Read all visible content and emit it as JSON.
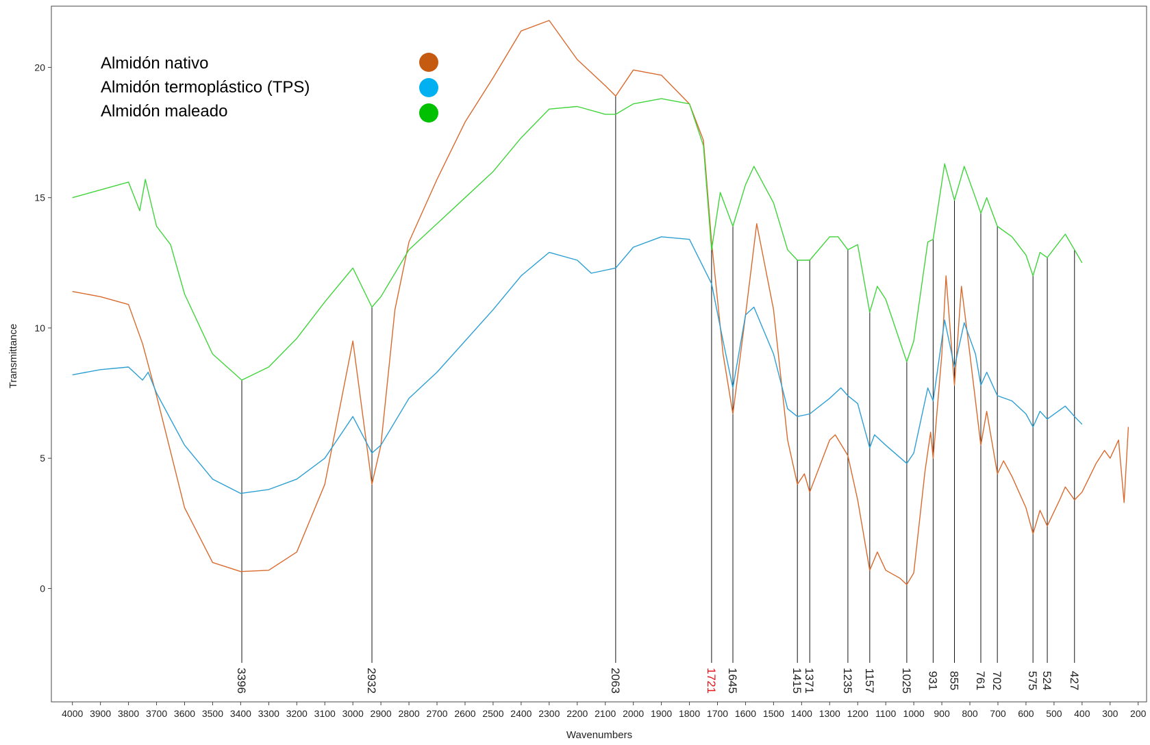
{
  "chart_data": {
    "type": "line",
    "x_label": "Wavenumbers",
    "y_label": "Transmittance",
    "xlim": [
      4075,
      170
    ],
    "ylim": [
      -4.35,
      22.35
    ],
    "xticks": [
      4000,
      3900,
      3800,
      3700,
      3600,
      3500,
      3400,
      3300,
      3200,
      3100,
      3000,
      2900,
      2800,
      2700,
      2600,
      2500,
      2400,
      2300,
      2200,
      2100,
      2000,
      1900,
      1800,
      1700,
      1600,
      1500,
      1400,
      1300,
      1200,
      1100,
      1000,
      900,
      800,
      700,
      600,
      500,
      400,
      300,
      200
    ],
    "yticks": [
      0,
      5,
      10,
      15,
      20
    ],
    "legend": "upper-left",
    "legend_colors": [
      "#c55a11",
      "#00b0f0",
      "#00c000"
    ],
    "series": [
      {
        "name": "Almidón nativo",
        "color": "#d9692d",
        "x": [
          4000,
          3900,
          3800,
          3750,
          3700,
          3600,
          3500,
          3400,
          3300,
          3200,
          3100,
          3000,
          2932,
          2900,
          2850,
          2800,
          2700,
          2600,
          2500,
          2400,
          2300,
          2200,
          2100,
          2063,
          2000,
          1900,
          1800,
          1750,
          1721,
          1680,
          1645,
          1600,
          1560,
          1500,
          1450,
          1415,
          1390,
          1371,
          1300,
          1280,
          1235,
          1200,
          1157,
          1130,
          1100,
          1050,
          1025,
          1000,
          960,
          940,
          931,
          900,
          885,
          855,
          830,
          800,
          761,
          740,
          702,
          680,
          650,
          600,
          575,
          550,
          524,
          480,
          460,
          427,
          400,
          350,
          320,
          300,
          270,
          250,
          235
        ],
        "values": [
          11.4,
          11.2,
          10.9,
          9.4,
          7.4,
          3.1,
          1.0,
          0.65,
          0.7,
          1.4,
          4.0,
          9.5,
          4.0,
          5.5,
          10.7,
          13.3,
          15.7,
          17.9,
          19.6,
          21.4,
          21.8,
          20.3,
          19.3,
          18.9,
          19.9,
          19.7,
          18.6,
          17.2,
          13.3,
          9.0,
          6.7,
          10.5,
          14.0,
          10.7,
          5.7,
          4.0,
          4.4,
          3.7,
          5.7,
          5.9,
          5.1,
          3.4,
          0.7,
          1.4,
          0.7,
          0.4,
          0.15,
          0.6,
          4.5,
          6.0,
          5.0,
          9.0,
          12.0,
          7.8,
          11.6,
          9.0,
          5.5,
          6.8,
          4.4,
          4.9,
          4.3,
          3.1,
          2.1,
          3.0,
          2.4,
          3.4,
          3.9,
          3.4,
          3.7,
          4.8,
          5.3,
          5.0,
          5.7,
          3.3,
          6.2
        ]
      },
      {
        "name": "Almidón termoplástico (TPS)",
        "color": "#2b9fd4",
        "x": [
          4000,
          3900,
          3800,
          3750,
          3730,
          3700,
          3600,
          3500,
          3400,
          3300,
          3200,
          3100,
          3000,
          2932,
          2900,
          2800,
          2700,
          2600,
          2500,
          2400,
          2300,
          2200,
          2150,
          2063,
          2000,
          1900,
          1800,
          1721,
          1680,
          1645,
          1600,
          1570,
          1500,
          1450,
          1415,
          1371,
          1300,
          1260,
          1235,
          1200,
          1157,
          1140,
          1100,
          1025,
          1000,
          950,
          931,
          890,
          855,
          820,
          780,
          761,
          740,
          702,
          650,
          600,
          575,
          550,
          524,
          460,
          427,
          400
        ],
        "values": [
          8.2,
          8.4,
          8.5,
          8.0,
          8.3,
          7.5,
          5.5,
          4.2,
          3.65,
          3.8,
          4.2,
          5.0,
          6.6,
          5.2,
          5.5,
          7.3,
          8.3,
          9.5,
          10.7,
          12.0,
          12.9,
          12.6,
          12.1,
          12.3,
          13.1,
          13.5,
          13.4,
          11.7,
          9.5,
          7.7,
          10.5,
          10.8,
          9.0,
          6.9,
          6.6,
          6.7,
          7.3,
          7.7,
          7.4,
          7.1,
          5.4,
          5.9,
          5.5,
          4.8,
          5.2,
          7.7,
          7.2,
          10.3,
          8.5,
          10.2,
          9.0,
          7.8,
          8.3,
          7.4,
          7.2,
          6.7,
          6.2,
          6.8,
          6.5,
          7.0,
          6.6,
          6.3
        ]
      },
      {
        "name": "Almidón maleado",
        "color": "#3fd43a",
        "x": [
          4000,
          3900,
          3800,
          3760,
          3740,
          3700,
          3650,
          3600,
          3500,
          3396,
          3300,
          3200,
          3100,
          3000,
          2932,
          2900,
          2800,
          2700,
          2600,
          2500,
          2400,
          2300,
          2200,
          2100,
          2063,
          2000,
          1900,
          1800,
          1750,
          1721,
          1690,
          1645,
          1600,
          1570,
          1500,
          1450,
          1415,
          1371,
          1300,
          1270,
          1235,
          1200,
          1157,
          1130,
          1100,
          1025,
          1000,
          950,
          931,
          890,
          855,
          820,
          780,
          761,
          740,
          702,
          650,
          600,
          575,
          550,
          524,
          460,
          427,
          400
        ],
        "values": [
          15.0,
          15.3,
          15.6,
          14.5,
          15.7,
          13.9,
          13.2,
          11.3,
          9.0,
          8.0,
          8.5,
          9.6,
          11.0,
          12.3,
          10.8,
          11.2,
          13.0,
          14.0,
          15.0,
          16.0,
          17.3,
          18.4,
          18.5,
          18.2,
          18.2,
          18.6,
          18.8,
          18.6,
          17.0,
          13.0,
          15.2,
          13.9,
          15.5,
          16.2,
          14.8,
          13.0,
          12.6,
          12.6,
          13.5,
          13.5,
          13.0,
          13.2,
          10.6,
          11.6,
          11.1,
          8.7,
          9.5,
          13.3,
          13.4,
          16.3,
          14.9,
          16.2,
          15.0,
          14.4,
          15.0,
          13.9,
          13.5,
          12.8,
          12.0,
          12.9,
          12.7,
          13.6,
          13.0,
          12.5
        ]
      }
    ],
    "peaks": [
      3396,
      2932,
      2063,
      1721,
      1645,
      1415,
      1371,
      1235,
      1157,
      1025,
      931,
      855,
      761,
      702,
      575,
      524,
      427
    ],
    "peak_colors": [
      "#222",
      "#222",
      "#222",
      "#e8141c",
      "#222",
      "#222",
      "#222",
      "#222",
      "#222",
      "#222",
      "#222",
      "#222",
      "#222",
      "#222",
      "#222",
      "#222",
      "#222"
    ]
  }
}
